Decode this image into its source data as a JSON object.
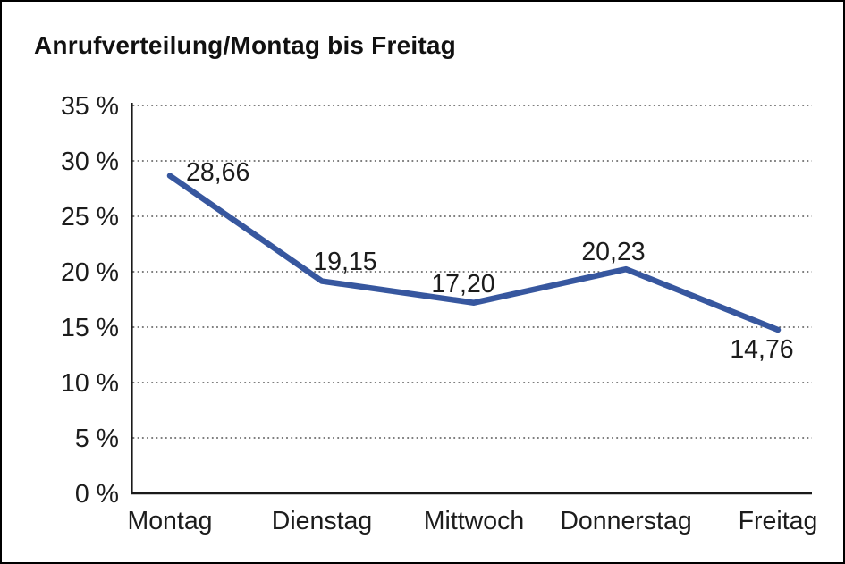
{
  "window": {
    "title": "Anrufverteilung/Montag bis Freitag"
  },
  "chart_data": {
    "type": "line",
    "title": "Anrufverteilung/Montag bis Freitag",
    "categories": [
      "Montag",
      "Dienstag",
      "Mittwoch",
      "Donnerstag",
      "Freitag"
    ],
    "series": [
      {
        "name": "Anrufverteilung",
        "values": [
          28.66,
          19.15,
          17.2,
          20.23,
          14.76
        ]
      }
    ],
    "value_labels": [
      "28,66",
      "19,15",
      "17,20",
      "20,23",
      "14,76"
    ],
    "xlabel": "",
    "ylabel": "%",
    "ylim": [
      0,
      35
    ],
    "ytick_step": 5,
    "ytick_labels": [
      "0 %",
      "5 %",
      "10 %",
      "15 %",
      "20 %",
      "25 %",
      "30 %",
      "35 %"
    ],
    "grid": "horizontal-dotted",
    "legend": "none",
    "colors": {
      "line": "#37579f",
      "axis": "#1a1a1a",
      "gridline": "#555555",
      "text": "#1c1c1c",
      "background": "#ffffff",
      "border": "#000000"
    }
  }
}
